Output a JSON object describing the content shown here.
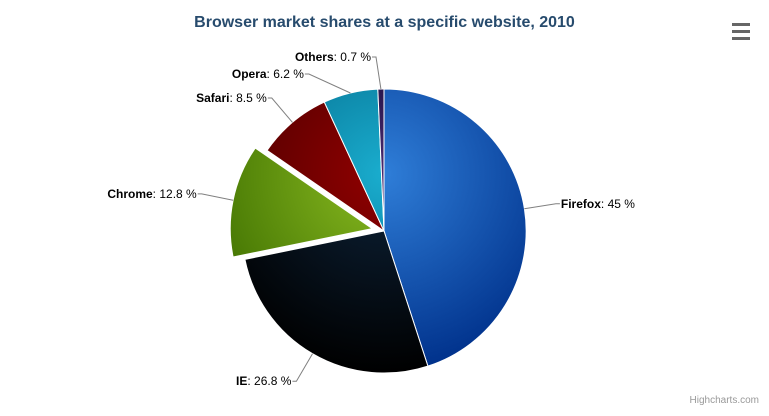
{
  "toolbar": {
    "menu_icon": "hamburger-menu",
    "icon_color": "#666666"
  },
  "credits": {
    "text": "Highcharts.com",
    "color": "#999999"
  },
  "chart_data": {
    "type": "pie",
    "title": "Browser market shares at a specific website, 2010",
    "title_color": "#274b6d",
    "label_separator": ": ",
    "value_suffix": " %",
    "label_color": "#000000",
    "connector_color": "#808080",
    "border_color": "#ffffff",
    "start_angle_deg": 0,
    "direction": "clockwise",
    "legend": "none",
    "gradient": "radial, base color to 30% darkened at rim",
    "slices": [
      {
        "name": "Firefox",
        "value": 45,
        "color": "#2f7ed8",
        "sliced": false
      },
      {
        "name": "IE",
        "value": 26.8,
        "color": "#0d233a",
        "sliced": false
      },
      {
        "name": "Chrome",
        "value": 12.8,
        "color": "#8bbc21",
        "sliced": true
      },
      {
        "name": "Safari",
        "value": 8.5,
        "color": "#910000",
        "sliced": false
      },
      {
        "name": "Opera",
        "value": 6.2,
        "color": "#1aadce",
        "sliced": false
      },
      {
        "name": "Others",
        "value": 0.7,
        "color": "#492970",
        "sliced": false
      }
    ]
  }
}
